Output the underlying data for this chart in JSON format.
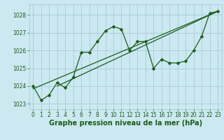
{
  "xlabel": "Graphe pression niveau de la mer (hPa)",
  "ylim": [
    1022.7,
    1028.6
  ],
  "xlim": [
    -0.5,
    23.5
  ],
  "yticks": [
    1023,
    1024,
    1025,
    1026,
    1027,
    1028
  ],
  "xticks": [
    0,
    1,
    2,
    3,
    4,
    5,
    6,
    7,
    8,
    9,
    10,
    11,
    12,
    13,
    14,
    15,
    16,
    17,
    18,
    19,
    20,
    21,
    22,
    23
  ],
  "bg_color": "#cce8f0",
  "grid_color": "#a8ccd8",
  "line_color": "#1a5c1a",
  "data_points": [
    [
      0,
      1024.0
    ],
    [
      1,
      1023.2
    ],
    [
      2,
      1023.5
    ],
    [
      3,
      1024.2
    ],
    [
      4,
      1023.9
    ],
    [
      5,
      1024.5
    ],
    [
      6,
      1025.9
    ],
    [
      7,
      1025.9
    ],
    [
      8,
      1026.5
    ],
    [
      9,
      1027.1
    ],
    [
      10,
      1027.35
    ],
    [
      11,
      1027.2
    ],
    [
      12,
      1026.0
    ],
    [
      13,
      1026.5
    ],
    [
      14,
      1026.5
    ],
    [
      15,
      1025.0
    ],
    [
      16,
      1025.5
    ],
    [
      17,
      1025.3
    ],
    [
      18,
      1025.3
    ],
    [
      19,
      1025.4
    ],
    [
      20,
      1026.0
    ],
    [
      21,
      1026.8
    ],
    [
      22,
      1028.1
    ],
    [
      23,
      1028.2
    ]
  ],
  "trend_line1": [
    [
      0,
      1023.85
    ],
    [
      23,
      1028.2
    ]
  ],
  "trend_line2": [
    [
      3,
      1024.0
    ],
    [
      23,
      1028.2
    ]
  ],
  "marker_size": 2.5,
  "line_width": 0.9,
  "tick_fontsize": 5.5,
  "label_fontsize": 7,
  "tick_color": "#1a5c1a",
  "label_color": "#1a5c1a"
}
